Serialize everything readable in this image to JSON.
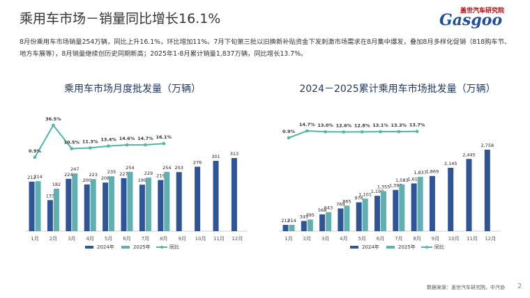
{
  "header": {
    "title": "乘用车市场－销量同比增长16.1%",
    "logo_cn": "盖世汽车研究院",
    "logo_en": "Gasgoo",
    "text": "8月份乘用车市场销量254万辆，同比上升16.1%，环比增加11%。7月下旬第三批以旧换新补贴资金下发刺激市场需求在8月集中爆发，叠加8月多样化促销（818购车节、地方车展等），8月销量继续创历史同期新高；2025年1-8月累计销量1,837万辆，同比增长13.7%。"
  },
  "chart_data": [
    {
      "type": "bar_line",
      "title": "乘用车市场月度批发量（万辆）",
      "categories": [
        "1月",
        "2月",
        "3月",
        "4月",
        "5月",
        "6月",
        "7月",
        "8月",
        "9月",
        "10月",
        "11月",
        "12月"
      ],
      "series": [
        {
          "name": "2024年",
          "color": "#2f5597",
          "values": [
            212,
            133,
            224,
            200,
            208,
            227,
            199,
            219,
            253,
            276,
            301,
            313
          ]
        },
        {
          "name": "2025年",
          "color": "#5fb0b0",
          "values": [
            214,
            182,
            247,
            223,
            235,
            254,
            229,
            254,
            null,
            null,
            null,
            null
          ]
        },
        {
          "name": "同比",
          "color": "#4db6a5",
          "line": true,
          "values": [
            0.9,
            36.5,
            10.5,
            11.3,
            13.4,
            14.6,
            14.7,
            16.1,
            null,
            null,
            null,
            null
          ],
          "value_labels": [
            "0.9%",
            "36.5%",
            "10.5%",
            "11.3%",
            "13.4%",
            "14.6%",
            "14.7%",
            "16.1%",
            null,
            null,
            null,
            null
          ]
        }
      ]
    },
    {
      "type": "bar_line",
      "title": "2024－2025累计乘用车市场批发量（万辆）",
      "categories": [
        "1月",
        "2月",
        "3月",
        "4月",
        "5月",
        "6月",
        "7月",
        "8月",
        "9月",
        "10月",
        "11月",
        "12月"
      ],
      "series": [
        {
          "name": "2024年",
          "color": "#2f5597",
          "values": [
            212,
            345,
            568,
            769,
            976,
            1198,
            1397,
            1616,
            1869,
            2145,
            2445,
            2758
          ],
          "value_labels": [
            "212",
            "345",
            "568",
            "769",
            "976",
            "1,198",
            "1,397",
            "1,616",
            "1,869",
            "2,145",
            "2,445",
            "2,758"
          ]
        },
        {
          "name": "2025年",
          "color": "#5fb0b0",
          "values": [
            214,
            395,
            643,
            865,
            1101,
            1355,
            1583,
            1837,
            null,
            null,
            null,
            null
          ],
          "value_labels": [
            "214",
            "395",
            "643",
            "865",
            "1,101",
            "1,355",
            "1,583",
            "1,837",
            null,
            null,
            null,
            null
          ]
        },
        {
          "name": "同比",
          "color": "#4db6a5",
          "line": true,
          "values": [
            0.9,
            14.7,
            13.0,
            12.6,
            12.8,
            13.1,
            13.3,
            13.7,
            null,
            null,
            null,
            null
          ],
          "value_labels": [
            "0.9%",
            "14.7%",
            "13.0%",
            "12.6%",
            "12.8%",
            "13.1%",
            "13.3%",
            "13.7%",
            null,
            null,
            null,
            null
          ]
        }
      ]
    }
  ],
  "footer": {
    "source": "数据来源：盖世汽车研究院，中汽协",
    "page": "2"
  }
}
